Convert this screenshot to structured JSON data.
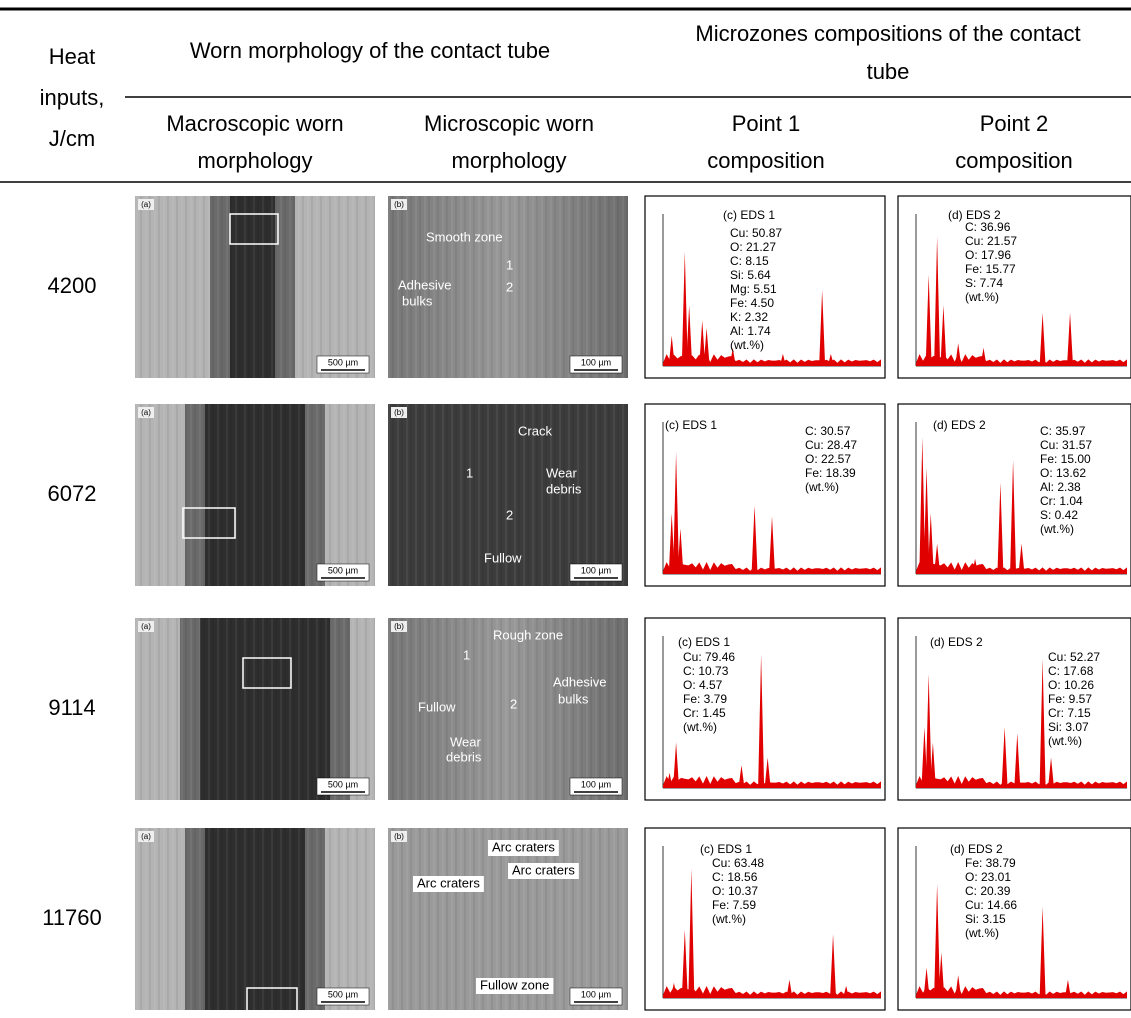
{
  "header": {
    "heat_inputs": [
      "Heat",
      "inputs,",
      "J/cm"
    ],
    "worn_morphology": "Worn morphology of the contact tube",
    "microzones": [
      "Microzones compositions of the contact",
      "tube"
    ],
    "columns": [
      [
        "Macroscopic worn",
        "morphology"
      ],
      [
        "Microscopic worn",
        "morphology"
      ],
      [
        "Point 1",
        "composition"
      ],
      [
        "Point 2",
        "composition"
      ]
    ]
  },
  "rows": [
    {
      "heat_input": "4200",
      "macro": {
        "label": "(a)",
        "scale": "500 µm"
      },
      "micro": {
        "label": "(b)",
        "scale": "100 µm",
        "annotations": [
          "Smooth zone",
          "1",
          "2",
          "Adhesive",
          "bulks"
        ]
      },
      "eds1": {
        "title": "(c) EDS 1",
        "composition": [
          "Cu: 50.87",
          "O: 21.27",
          "C: 8.15",
          "Si: 5.64",
          "Mg: 5.51",
          "Fe: 4.50",
          "K: 2.32",
          "Al: 1.74",
          "(wt.%)"
        ]
      },
      "eds2": {
        "title": "(d) EDS 2",
        "composition": [
          "C: 36.96",
          "Cu: 21.57",
          "O: 17.96",
          "Fe: 15.77",
          "S: 7.74",
          "(wt.%)"
        ]
      }
    },
    {
      "heat_input": "6072",
      "macro": {
        "label": "(a)",
        "scale": "500 µm"
      },
      "micro": {
        "label": "(b)",
        "scale": "100 µm",
        "annotations": [
          "Crack",
          "Wear",
          "debris",
          "1",
          "2",
          "Fullow"
        ]
      },
      "eds1": {
        "title": "(c) EDS 1",
        "composition": [
          "C: 30.57",
          "Cu: 28.47",
          "O: 22.57",
          "Fe: 18.39",
          "(wt.%)"
        ]
      },
      "eds2": {
        "title": "(d) EDS 2",
        "composition": [
          "C: 35.97",
          "Cu: 31.57",
          "Fe: 15.00",
          "O: 13.62",
          "Al: 2.38",
          "Cr: 1.04",
          "S: 0.42",
          "(wt.%)"
        ]
      }
    },
    {
      "heat_input": "9114",
      "macro": {
        "label": "(a)",
        "scale": "500 µm"
      },
      "micro": {
        "label": "(b)",
        "scale": "100 µm",
        "annotations": [
          "Rough zone",
          "1",
          "Fullow",
          "2",
          "Adhesive",
          "bulks",
          "Wear",
          "debris"
        ]
      },
      "eds1": {
        "title": "(c) EDS 1",
        "composition": [
          "Cu: 79.46",
          "C: 10.73",
          "O: 4.57",
          "Fe: 3.79",
          "Cr: 1.45",
          "(wt.%)"
        ]
      },
      "eds2": {
        "title": "(d) EDS 2",
        "composition": [
          "Cu: 52.27",
          "C: 17.68",
          "O: 10.26",
          "Fe: 9.57",
          "Cr: 7.15",
          "Si: 3.07",
          "(wt.%)"
        ]
      }
    },
    {
      "heat_input": "11760",
      "macro": {
        "label": "(a)",
        "scale": "500 µm"
      },
      "micro": {
        "label": "(b)",
        "scale": "100 µm",
        "annotations": [
          "Arc craters",
          "Arc craters",
          "Arc craters",
          "Fullow zone"
        ]
      },
      "eds1": {
        "title": "(c) EDS 1",
        "composition": [
          "Cu: 63.48",
          "C: 18.56",
          "O: 10.37",
          "Fe: 7.59",
          "(wt.%)"
        ]
      },
      "eds2": {
        "title": "(d) EDS 2",
        "composition": [
          "Fe: 38.79",
          "O: 23.01",
          "C: 20.39",
          "Cu: 14.66",
          "Si: 3.15",
          "(wt.%)"
        ]
      }
    }
  ]
}
